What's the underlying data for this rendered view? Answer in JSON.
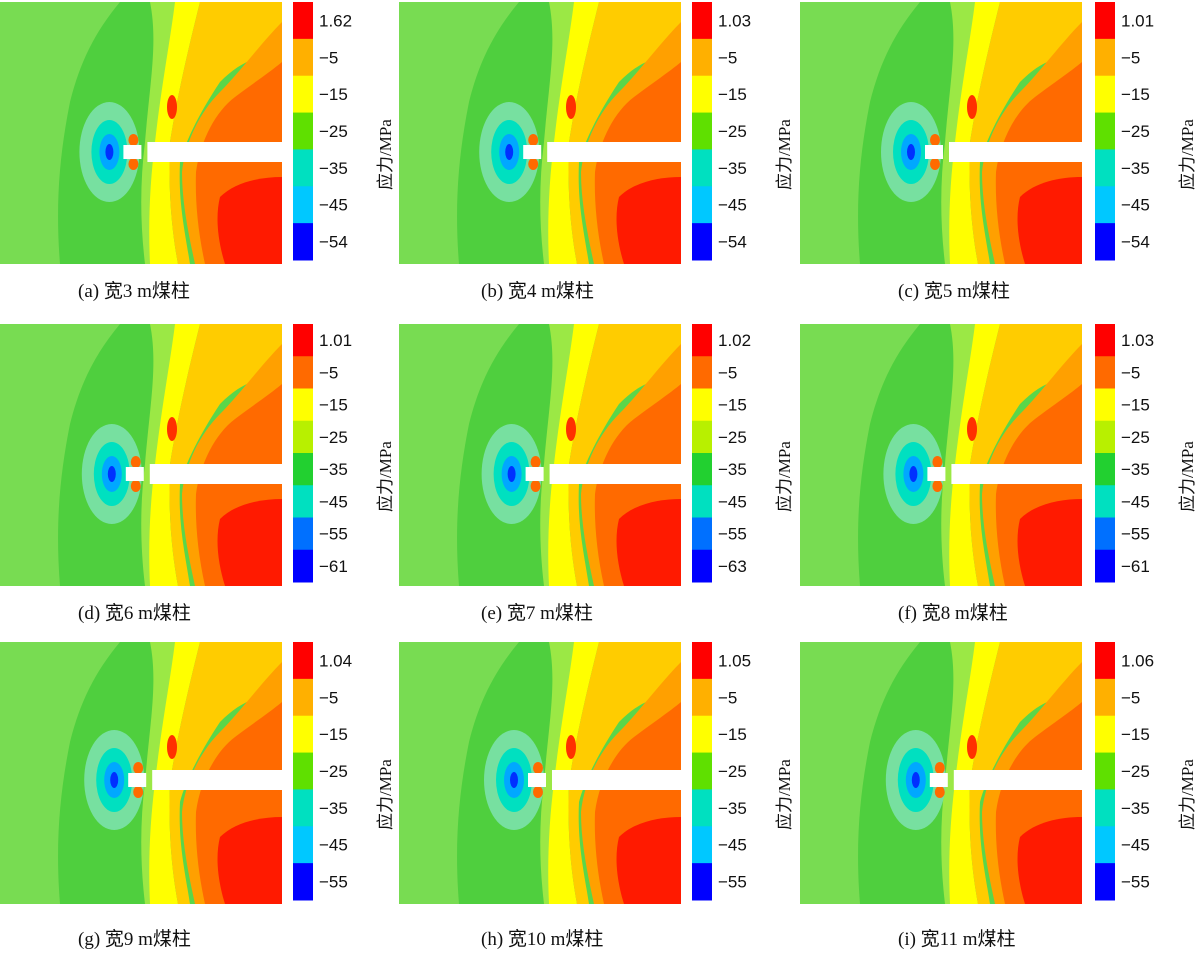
{
  "colorbar_unit": "应力/MPa",
  "colorbar_colors": [
    "#ff0000",
    "#ff6a00",
    "#ffb000",
    "#ffff00",
    "#b8f000",
    "#5fe000",
    "#22d030",
    "#00e0c0",
    "#00c8ff",
    "#0070ff",
    "#0000ff"
  ],
  "panels": [
    {
      "caption": "(a)  宽3 m煤柱",
      "max": "1.62",
      "ticks": [
        "−5",
        "−15",
        "−25",
        "−35",
        "−45",
        "−54"
      ],
      "pillar_width_m": 3
    },
    {
      "caption": "(b)  宽4 m煤柱",
      "max": "1.03",
      "ticks": [
        "−5",
        "−15",
        "−25",
        "−35",
        "−45",
        "−54"
      ],
      "pillar_width_m": 4
    },
    {
      "caption": "(c)  宽5 m煤柱",
      "max": "1.01",
      "ticks": [
        "−5",
        "−15",
        "−25",
        "−35",
        "−45",
        "−54"
      ],
      "pillar_width_m": 5
    },
    {
      "caption": "(d)  宽6 m煤柱",
      "max": "1.01",
      "ticks": [
        "−5",
        "−15",
        "−25",
        "−35",
        "−45",
        "−55",
        "−61"
      ],
      "pillar_width_m": 6
    },
    {
      "caption": "(e)  宽7 m煤柱",
      "max": "1.02",
      "ticks": [
        "−5",
        "−15",
        "−25",
        "−35",
        "−45",
        "−55",
        "−63"
      ],
      "pillar_width_m": 7
    },
    {
      "caption": "(f)  宽8 m煤柱",
      "max": "1.03",
      "ticks": [
        "−5",
        "−15",
        "−25",
        "−35",
        "−45",
        "−55",
        "−61"
      ],
      "pillar_width_m": 8
    },
    {
      "caption": "(g)  宽9 m煤柱",
      "max": "1.04",
      "ticks": [
        "−5",
        "−15",
        "−25",
        "−35",
        "−45",
        "−55"
      ],
      "pillar_width_m": 9
    },
    {
      "caption": "(h)  宽10 m煤柱",
      "max": "1.05",
      "ticks": [
        "−5",
        "−15",
        "−25",
        "−35",
        "−45",
        "−55"
      ],
      "pillar_width_m": 10
    },
    {
      "caption": "(i)  宽11 m煤柱",
      "max": "1.06",
      "ticks": [
        "−5",
        "−15",
        "−25",
        "−35",
        "−45",
        "−55"
      ],
      "pillar_width_m": 11
    }
  ]
}
